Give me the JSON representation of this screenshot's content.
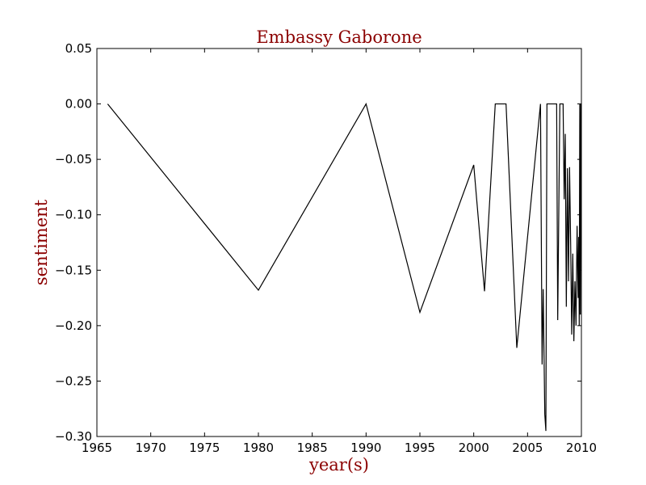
{
  "chart_data": {
    "type": "line",
    "title": "Embassy Gaborone",
    "xlabel": "year(s)",
    "ylabel": "sentiment",
    "xlim": [
      1965,
      2010
    ],
    "ylim": [
      -0.3,
      0.05
    ],
    "xticks": [
      "1965",
      "1970",
      "1975",
      "1980",
      "1985",
      "1990",
      "1995",
      "2000",
      "2005",
      "2010"
    ],
    "yticks": [
      "0.05",
      "0.00",
      "−0.05",
      "−0.10",
      "−0.15",
      "−0.20",
      "−0.25",
      "−0.30"
    ],
    "grid": false,
    "colors": {
      "line": "#000000",
      "title": "#8b0000",
      "labels": "#8b0000"
    },
    "series": [
      {
        "x": [
          1966.0,
          1980.0,
          1990.0,
          1995.0,
          2000.0,
          2001.0,
          2002.0,
          2003.0,
          2004.0,
          2006.2,
          2006.35,
          2006.45,
          2006.6,
          2006.7,
          2006.8,
          2007.0,
          2007.4,
          2007.7,
          2007.8,
          2008.0,
          2008.3,
          2008.4,
          2008.5,
          2008.6,
          2008.7,
          2008.8,
          2008.9,
          2009.0,
          2009.1,
          2009.2,
          2009.3,
          2009.4,
          2009.5,
          2009.6,
          2009.7,
          2009.75,
          2009.8,
          2009.85,
          2009.9,
          2009.95,
          2010.0
        ],
        "y": [
          0.0,
          -0.168,
          0.0,
          -0.188,
          -0.055,
          -0.169,
          0.0,
          0.0,
          -0.22,
          0.0,
          -0.235,
          -0.167,
          -0.28,
          -0.295,
          0.0,
          0.0,
          0.0,
          0.0,
          -0.195,
          0.0,
          0.0,
          -0.086,
          -0.027,
          -0.183,
          -0.058,
          -0.16,
          -0.057,
          -0.125,
          -0.208,
          -0.135,
          -0.214,
          -0.16,
          -0.2,
          -0.11,
          -0.175,
          -0.12,
          -0.2,
          0.0,
          -0.19,
          0.0,
          0.0
        ]
      }
    ]
  }
}
